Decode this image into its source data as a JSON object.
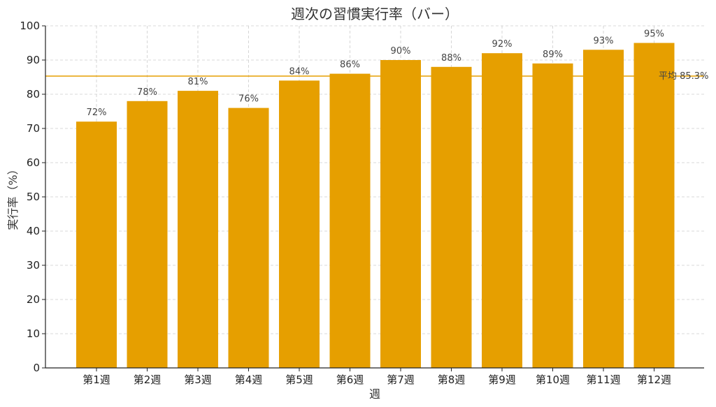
{
  "chart_data": {
    "type": "bar",
    "title": "週次の習慣実行率（バー）",
    "xlabel": "週",
    "ylabel": "実行率（%）",
    "categories": [
      "第1週",
      "第2週",
      "第3週",
      "第4週",
      "第5週",
      "第6週",
      "第7週",
      "第8週",
      "第9週",
      "第10週",
      "第11週",
      "第12週"
    ],
    "values": [
      72,
      78,
      81,
      76,
      84,
      86,
      90,
      88,
      92,
      89,
      93,
      95
    ],
    "value_labels": [
      "72%",
      "78%",
      "81%",
      "76%",
      "84%",
      "86%",
      "90%",
      "88%",
      "92%",
      "89%",
      "93%",
      "95%"
    ],
    "ylim": [
      0,
      100
    ],
    "yticks": [
      0,
      10,
      20,
      30,
      40,
      50,
      60,
      70,
      80,
      90,
      100
    ],
    "grid": true,
    "bar_color": "#E69F00",
    "average": {
      "value": 85.3,
      "label": "平均 85.3%",
      "color": "#E69F00"
    }
  }
}
